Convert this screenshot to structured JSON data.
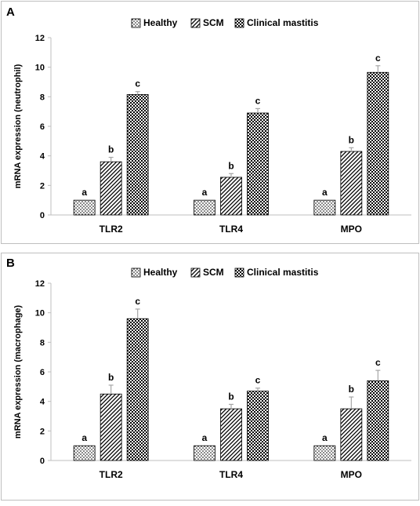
{
  "colors": {
    "bar_outline": "#000000",
    "error_bar": "#a6a6a6",
    "axis": "#bfbfbf",
    "frame": "#bfbfbf"
  },
  "legend_icons": [
    "dotted-pattern-icon",
    "diagonal-stripe-pattern-icon",
    "checker-pattern-icon"
  ],
  "chart_data": [
    {
      "panel": "A",
      "type": "bar",
      "ylabel": "mRNA expression (neutrophil)",
      "ylim": [
        0,
        12
      ],
      "yticks": [
        0,
        2,
        4,
        6,
        8,
        10,
        12
      ],
      "categories": [
        "TLR2",
        "TLR4",
        "MPO"
      ],
      "legend_position": "top",
      "grid": false,
      "series": [
        {
          "name": "Healthy",
          "pattern": "dots",
          "values": [
            1,
            1,
            1
          ],
          "errors": [
            0,
            0,
            0
          ],
          "labels": [
            "a",
            "a",
            "a"
          ]
        },
        {
          "name": "SCM",
          "pattern": "diagonal",
          "values": [
            3.6,
            2.55,
            4.3
          ],
          "errors": [
            0.3,
            0.25,
            0.25
          ],
          "labels": [
            "b",
            "b",
            "b"
          ]
        },
        {
          "name": "Clinical mastitis",
          "pattern": "checker",
          "values": [
            8.15,
            6.9,
            9.65
          ],
          "errors": [
            0.2,
            0.3,
            0.45
          ],
          "labels": [
            "c",
            "c",
            "c"
          ]
        }
      ]
    },
    {
      "panel": "B",
      "type": "bar",
      "ylabel": "mRNA expression (macrophage)",
      "ylim": [
        0,
        12
      ],
      "yticks": [
        0,
        2,
        4,
        6,
        8,
        10,
        12
      ],
      "categories": [
        "TLR2",
        "TLR4",
        "MPO"
      ],
      "legend_position": "top",
      "grid": false,
      "series": [
        {
          "name": "Healthy",
          "pattern": "dots",
          "values": [
            1,
            1,
            1
          ],
          "errors": [
            0,
            0,
            0
          ],
          "labels": [
            "a",
            "a",
            "a"
          ]
        },
        {
          "name": "SCM",
          "pattern": "diagonal",
          "values": [
            4.5,
            3.5,
            3.5
          ],
          "errors": [
            0.6,
            0.3,
            0.8
          ],
          "labels": [
            "b",
            "b",
            "b"
          ]
        },
        {
          "name": "Clinical mastitis",
          "pattern": "checker",
          "values": [
            9.6,
            4.7,
            5.4
          ],
          "errors": [
            0.65,
            0.2,
            0.7
          ],
          "labels": [
            "c",
            "c",
            "c"
          ]
        }
      ]
    }
  ]
}
